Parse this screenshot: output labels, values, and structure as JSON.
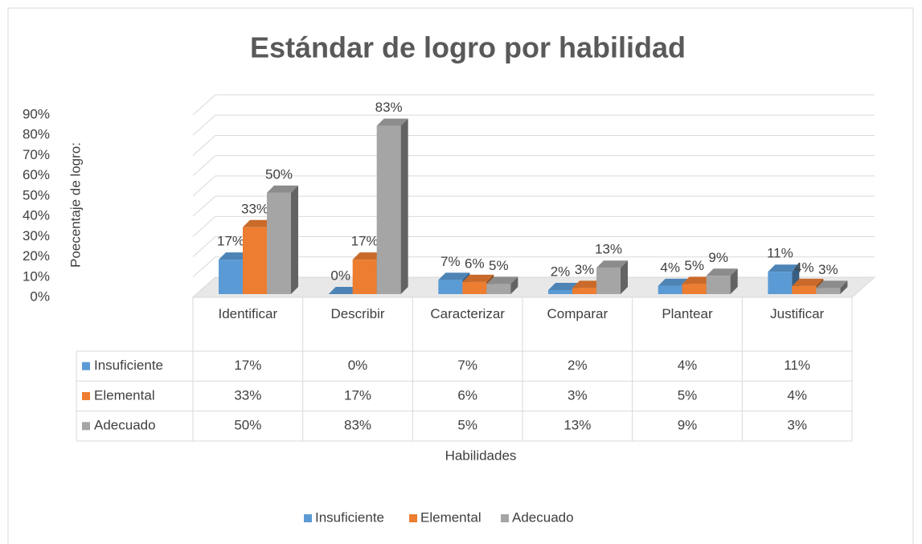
{
  "chart_data": {
    "type": "bar",
    "title": "Estándar de logro por habilidad",
    "y_label": "Poecentaje de logro:",
    "x_label": "Habilidades",
    "categories": [
      "Identificar",
      "Describir",
      "Caracterizar",
      "Comparar",
      "Plantear",
      "Justificar"
    ],
    "series": [
      {
        "name": "Insuficiente",
        "color": "#5b9bd5",
        "values": [
          17,
          0,
          7,
          2,
          4,
          11
        ],
        "value_labels": [
          "17%",
          "0%",
          "7%",
          "2%",
          "4%",
          "11%"
        ]
      },
      {
        "name": "Elemental",
        "color": "#ed7d31",
        "values": [
          33,
          17,
          6,
          3,
          5,
          4
        ],
        "value_labels": [
          "33%",
          "17%",
          "6%",
          "3%",
          "5%",
          "4%"
        ]
      },
      {
        "name": "Adecuado",
        "color": "#a5a5a5",
        "values": [
          50,
          83,
          5,
          13,
          9,
          3
        ],
        "value_labels": [
          "50%",
          "83%",
          "5%",
          "13%",
          "9%",
          "3%"
        ]
      }
    ],
    "ylim": [
      0,
      90
    ],
    "yticks": [
      {
        "value": 0,
        "label": "0%"
      },
      {
        "value": 10,
        "label": "10%"
      },
      {
        "value": 20,
        "label": "20%"
      },
      {
        "value": 30,
        "label": "30%"
      },
      {
        "value": 40,
        "label": "40%"
      },
      {
        "value": 50,
        "label": "50%"
      },
      {
        "value": 60,
        "label": "60%"
      },
      {
        "value": 70,
        "label": "70%"
      },
      {
        "value": 80,
        "label": "80%"
      },
      {
        "value": 90,
        "label": "90%"
      }
    ],
    "grid": true,
    "legend": "bottom"
  }
}
